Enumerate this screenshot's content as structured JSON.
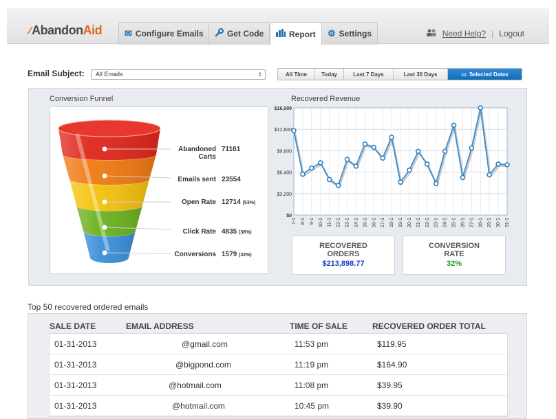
{
  "app": {
    "logo_prefix": "Abandon",
    "logo_suffix": "Aid"
  },
  "tabs": [
    {
      "label": "Configure Emails",
      "icon": "envelope-icon",
      "active": false
    },
    {
      "label": "Get Code",
      "icon": "wrench-icon",
      "active": false
    },
    {
      "label": "Report",
      "icon": "bar-chart-icon",
      "active": true
    },
    {
      "label": "Settings",
      "icon": "gear-icon",
      "active": false
    }
  ],
  "help": {
    "need_help": "Need Help?",
    "separator": "|",
    "logout": "Logout"
  },
  "filter": {
    "subject_label": "Email Subject:",
    "subject_value": "All Emails",
    "ranges": [
      "All Time",
      "Today",
      "Last 7 Days",
      "Last 30 Days",
      "Selected Dates"
    ],
    "selected_range": "Selected Dates"
  },
  "funnel": {
    "title": "Conversion Funnel",
    "stages": [
      {
        "label_line1": "Abandoned",
        "label_line2": "Carts",
        "value": "71161",
        "pct": "",
        "color": "#e0261b"
      },
      {
        "label_line1": "Emails sent",
        "label_line2": "",
        "value": "23554",
        "pct": "",
        "color": "#f07a12"
      },
      {
        "label_line1": "Open Rate",
        "label_line2": "",
        "value": "12714",
        "pct": "(53%)",
        "color": "#f4c20d"
      },
      {
        "label_line1": "Click Rate",
        "label_line2": "",
        "value": "4835",
        "pct": "(38%)",
        "color": "#6cb21f"
      },
      {
        "label_line1": "Conversions",
        "label_line2": "",
        "value": "1579",
        "pct": "(32%)",
        "color": "#3b8fd8"
      }
    ]
  },
  "chart_data": {
    "type": "line",
    "title": "Recovered Revenue",
    "x": [
      "7-1",
      "8-1",
      "9-1",
      "10-1",
      "11-1",
      "12-1",
      "13-1",
      "14-1",
      "15-1",
      "16-1",
      "17-1",
      "18-1",
      "19-1",
      "20-1",
      "21-1",
      "22-1",
      "23-1",
      "24-1",
      "25-1",
      "26-1",
      "27-1",
      "28-1",
      "29-1",
      "30-1",
      "31-1"
    ],
    "series": [
      {
        "values": [
          12600,
          6100,
          7000,
          7800,
          5300,
          4400,
          8300,
          7300,
          10600,
          10100,
          8500,
          11600,
          4900,
          6700,
          9500,
          7600,
          4700,
          9500,
          13400,
          5600,
          10000,
          16000,
          6000,
          7600,
          7500
        ]
      }
    ],
    "yticks": [
      "$0",
      "$3,200",
      "$6,400",
      "$9,600",
      "$12,800",
      "$16,000"
    ],
    "ylim": [
      0,
      16000
    ],
    "grid": true,
    "line_color": "#4a90c8"
  },
  "stats": [
    {
      "title_line1": "RECOVERED",
      "title_line2": "ORDERS",
      "value": "$213,898.77",
      "color": "#1a3fcf"
    },
    {
      "title_line1": "CONVERSION",
      "title_line2": "RATE",
      "value": "32%",
      "color": "#2a9a2a"
    }
  ],
  "table": {
    "title": "Top 50 recovered ordered emails",
    "headers": [
      "SALE DATE",
      "EMAIL ADDRESS",
      "TIME OF SALE",
      "RECOVERED ORDER TOTAL"
    ],
    "rows": [
      {
        "date": "01-31-2013",
        "email": "@gmail.com",
        "time": "11:53 pm",
        "total": "$119.95"
      },
      {
        "date": "01-31-2013",
        "email": "@bigpond.com",
        "time": "11:19 pm",
        "total": "$164.90"
      },
      {
        "date": "01-31-2013",
        "email": "@hotmail.com",
        "time": "11:08 pm",
        "total": "$39.95"
      },
      {
        "date": "01-31-2013",
        "email": "@hotmail.com",
        "time": "10:45 pm",
        "total": "$39.90"
      }
    ]
  }
}
